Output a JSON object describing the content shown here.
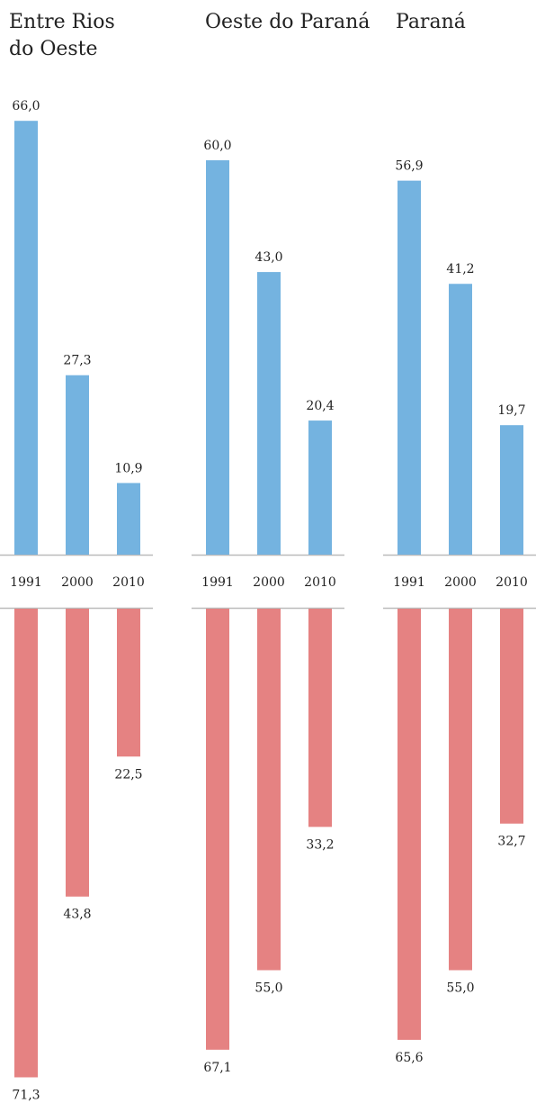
{
  "chart_data": {
    "type": "bar",
    "categories": [
      "1991",
      "2000",
      "2010"
    ],
    "panels": [
      {
        "title": "Entre Rios\ndo Oeste",
        "top": [
          66.0,
          27.3,
          10.9
        ],
        "top_labels": [
          "66,0",
          "27,3",
          "10,9"
        ],
        "bottom": [
          71.3,
          43.8,
          22.5
        ],
        "bottom_labels": [
          "71,3",
          "43,8",
          "22,5"
        ]
      },
      {
        "title": "Oeste do Paraná",
        "top": [
          60.0,
          43.0,
          20.4
        ],
        "top_labels": [
          "60,0",
          "43,0",
          "20,4"
        ],
        "bottom": [
          67.1,
          55.0,
          33.2
        ],
        "bottom_labels": [
          "67,1",
          "55,0",
          "33,2"
        ]
      },
      {
        "title": "Paraná",
        "top": [
          56.9,
          41.2,
          19.7
        ],
        "top_labels": [
          "56,9",
          "41,2",
          "19,7"
        ],
        "bottom": [
          65.6,
          55.0,
          32.7
        ],
        "bottom_labels": [
          "65,6",
          "55,0",
          "32,7"
        ]
      }
    ],
    "colors": {
      "top": "#74b3e0",
      "bottom": "#e58282",
      "axis": "#bbbbbb"
    }
  }
}
